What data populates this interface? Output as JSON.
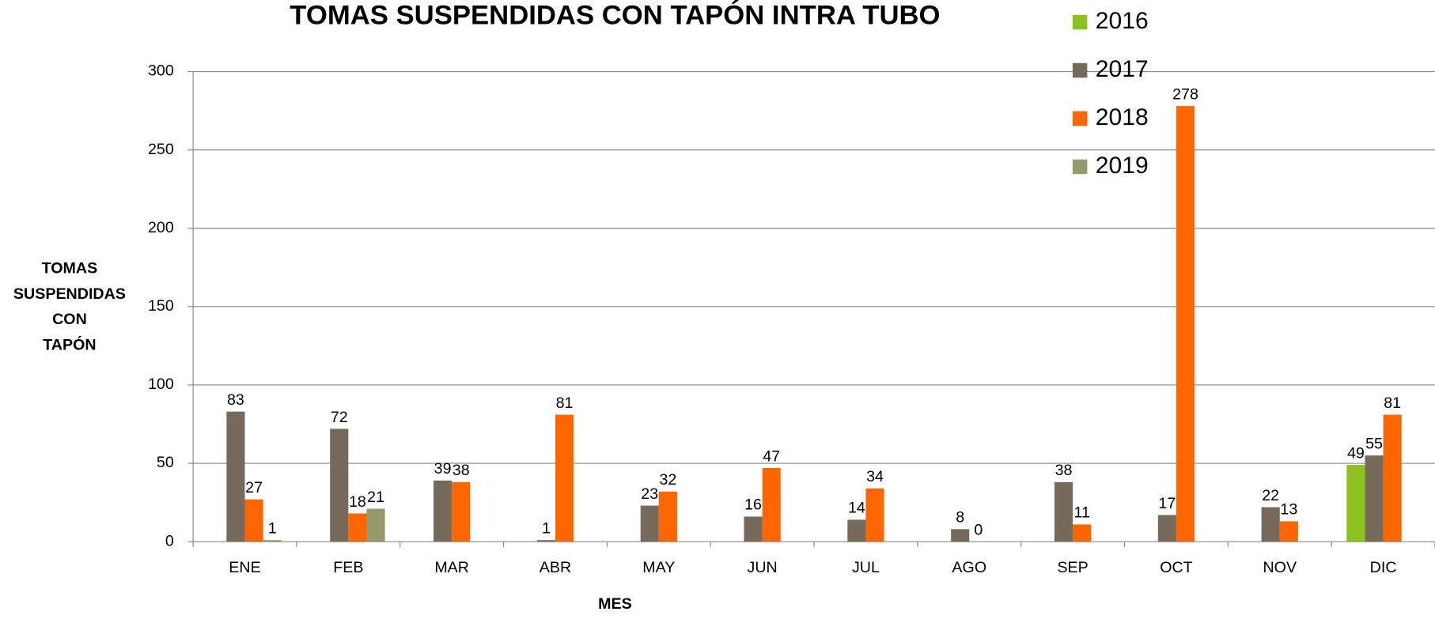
{
  "chart_data": {
    "type": "bar",
    "title": "TOMAS SUSPENDIDAS CON TAPÓN INTRA TUBO",
    "x_label": "MES",
    "y_label": "TOMAS SUSPENDIDAS CON TAPÓN",
    "categories": [
      "ENE",
      "FEB",
      "MAR",
      "ABR",
      "MAY",
      "JUN",
      "JUL",
      "AGO",
      "SEP",
      "OCT",
      "NOV",
      "DIC"
    ],
    "series": [
      {
        "name": "2016",
        "color": "#8cc21f",
        "values": [
          null,
          null,
          null,
          null,
          null,
          null,
          null,
          null,
          null,
          null,
          null,
          49
        ]
      },
      {
        "name": "2017",
        "color": "#766a5b",
        "values": [
          83,
          72,
          39,
          1,
          23,
          16,
          14,
          8,
          38,
          17,
          22,
          55
        ]
      },
      {
        "name": "2018",
        "color": "#ff6600",
        "values": [
          27,
          18,
          38,
          81,
          32,
          47,
          34,
          0,
          11,
          278,
          13,
          81
        ]
      },
      {
        "name": "2019",
        "color": "#949a6a",
        "values": [
          1,
          21,
          null,
          null,
          null,
          null,
          null,
          null,
          null,
          null,
          null,
          null
        ]
      }
    ],
    "ylim": [
      0,
      300
    ],
    "yticks": [
      0,
      50,
      100,
      150,
      200,
      250,
      300
    ],
    "grid": true,
    "legend": "top-right"
  }
}
